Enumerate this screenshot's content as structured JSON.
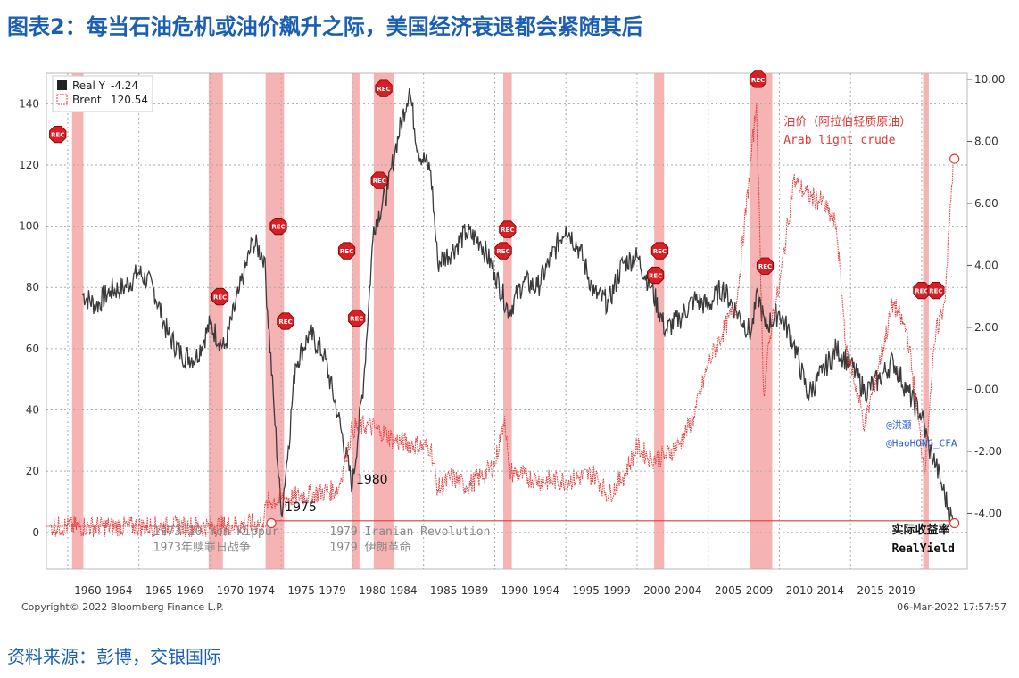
{
  "header": {
    "title": "图表2：每当石油危机或油价飙升之际，美国经济衰退都会紧随其后"
  },
  "footer": {
    "source": "资料来源：彭博，交银国际"
  },
  "chart_meta": {
    "copyright": "Copyright© 2022 Bloomberg Finance L.P.",
    "timestamp": "06-Mar-2022 17:57:57",
    "recession_label": "REC",
    "colors": {
      "real_yield": "#3a3a3a",
      "brent": "#e03a3a",
      "recession": "#f4a0a0",
      "rec_badge": "#d81f26",
      "title": "#1a5fb4",
      "annotation_red": "#e03a3a"
    }
  },
  "chart_data": {
    "type": "line",
    "x_domain": [
      1958.5,
      2023.2
    ],
    "xlim": [
      1958.5,
      2023.2
    ],
    "y_left_lim": [
      -12,
      150
    ],
    "y_right_lim": [
      -5.8,
      10.2
    ],
    "left_ticks": [
      0,
      20,
      40,
      60,
      80,
      100,
      120,
      140
    ],
    "right_ticks": [
      "-4.00",
      "-2.00",
      "0.00",
      "2.00",
      "4.00",
      "6.00",
      "8.00",
      "10.00"
    ],
    "x_categories": [
      "1960-1964",
      "1965-1969",
      "1970-1974",
      "1975-1979",
      "1980-1984",
      "1985-1989",
      "1990-1994",
      "1995-1999",
      "2000-2004",
      "2005-2009",
      "2010-2014",
      "2015-2019"
    ],
    "grid": true,
    "legend": [
      {
        "name": "Real Y",
        "value": "-4.24"
      },
      {
        "name": "Brent",
        "value": "120.54"
      }
    ],
    "recessions": [
      [
        1960.3,
        1961.1
      ],
      [
        1969.9,
        1970.9
      ],
      [
        1973.9,
        1975.2
      ],
      [
        1980.0,
        1980.5
      ],
      [
        1981.5,
        1982.9
      ],
      [
        1990.6,
        1991.2
      ],
      [
        2001.2,
        2001.9
      ],
      [
        2007.9,
        2009.5
      ],
      [
        2020.1,
        2020.5
      ]
    ],
    "series": [
      {
        "name": "Real Y",
        "axis": "left",
        "points": [
          [
            1961,
            78
          ],
          [
            1962,
            74
          ],
          [
            1963,
            79
          ],
          [
            1964,
            80
          ],
          [
            1965,
            85
          ],
          [
            1966,
            80
          ],
          [
            1967,
            65
          ],
          [
            1968,
            58
          ],
          [
            1969,
            57
          ],
          [
            1970,
            68
          ],
          [
            1971,
            60
          ],
          [
            1972,
            78
          ],
          [
            1973,
            95
          ],
          [
            1973.8,
            90
          ],
          [
            1974.5,
            40
          ],
          [
            1975,
            6
          ],
          [
            1975.5,
            28
          ],
          [
            1976,
            55
          ],
          [
            1977,
            65
          ],
          [
            1978,
            58
          ],
          [
            1979,
            38
          ],
          [
            1980,
            15
          ],
          [
            1980.8,
            50
          ],
          [
            1981.5,
            100
          ],
          [
            1982.5,
            112
          ],
          [
            1983,
            125
          ],
          [
            1984,
            145
          ],
          [
            1984.6,
            125
          ],
          [
            1985.5,
            118
          ],
          [
            1986,
            88
          ],
          [
            1987,
            92
          ],
          [
            1988,
            98
          ],
          [
            1989,
            95
          ],
          [
            1990,
            85
          ],
          [
            1991,
            72
          ],
          [
            1992,
            82
          ],
          [
            1993,
            80
          ],
          [
            1994,
            90
          ],
          [
            1995,
            100
          ],
          [
            1996,
            92
          ],
          [
            1997,
            78
          ],
          [
            1998,
            75
          ],
          [
            1999,
            88
          ],
          [
            2000,
            90
          ],
          [
            2001,
            80
          ],
          [
            2002,
            66
          ],
          [
            2003,
            70
          ],
          [
            2004,
            76
          ],
          [
            2005,
            74
          ],
          [
            2006,
            80
          ],
          [
            2007,
            72
          ],
          [
            2008,
            65
          ],
          [
            2008.5,
            78
          ],
          [
            2009,
            67
          ],
          [
            2010,
            72
          ],
          [
            2011,
            62
          ],
          [
            2012,
            45
          ],
          [
            2013,
            52
          ],
          [
            2014,
            60
          ],
          [
            2015,
            55
          ],
          [
            2016,
            46
          ],
          [
            2017,
            50
          ],
          [
            2018,
            56
          ],
          [
            2019,
            46
          ],
          [
            2020,
            38
          ],
          [
            2020.5,
            28
          ],
          [
            2021,
            22
          ],
          [
            2021.5,
            14
          ],
          [
            2022.2,
            3
          ]
        ]
      },
      {
        "name": "Brent",
        "axis": "left",
        "points": [
          [
            1958.8,
            2
          ],
          [
            1970,
            2
          ],
          [
            1973.7,
            3
          ],
          [
            1974,
            10
          ],
          [
            1979,
            14
          ],
          [
            1980,
            34
          ],
          [
            1981,
            35
          ],
          [
            1982,
            33
          ],
          [
            1983,
            30
          ],
          [
            1985,
            28
          ],
          [
            1985.5,
            28
          ],
          [
            1986,
            14
          ],
          [
            1987,
            18
          ],
          [
            1988,
            15
          ],
          [
            1989,
            18
          ],
          [
            1990,
            22
          ],
          [
            1990.7,
            38
          ],
          [
            1991,
            20
          ],
          [
            1993,
            17
          ],
          [
            1995,
            17
          ],
          [
            1997,
            19
          ],
          [
            1998,
            12
          ],
          [
            1999,
            18
          ],
          [
            2000,
            28
          ],
          [
            2001,
            24
          ],
          [
            2002,
            25
          ],
          [
            2003,
            29
          ],
          [
            2004,
            38
          ],
          [
            2005,
            55
          ],
          [
            2006,
            65
          ],
          [
            2007,
            75
          ],
          [
            2008.4,
            140
          ],
          [
            2008.9,
            45
          ],
          [
            2009.5,
            70
          ],
          [
            2010,
            80
          ],
          [
            2011,
            115
          ],
          [
            2012,
            110
          ],
          [
            2013,
            108
          ],
          [
            2014,
            100
          ],
          [
            2014.8,
            55
          ],
          [
            2015,
            55
          ],
          [
            2016,
            35
          ],
          [
            2017,
            55
          ],
          [
            2018,
            75
          ],
          [
            2019,
            65
          ],
          [
            2020.2,
            20
          ],
          [
            2020.6,
            45
          ],
          [
            2021,
            65
          ],
          [
            2021.6,
            75
          ],
          [
            2022.2,
            120
          ]
        ]
      }
    ],
    "point_labels": [
      {
        "text": "1975",
        "x": 1975,
        "y": 7
      },
      {
        "text": "1980",
        "x": 1980,
        "y": 16
      }
    ],
    "annotations": [
      {
        "text": "1973-10 Yom Kippur",
        "x": 1966,
        "y": -1
      },
      {
        "text": "1973年赎罪日战争",
        "x": 1966,
        "y": -6
      },
      {
        "text": "1979 Iranian Revolution",
        "x": 1978.4,
        "y": -1
      },
      {
        "text": "1979 伊朗革命",
        "x": 1978.4,
        "y": -6
      },
      {
        "text": "油价（阿拉伯轻质原油）",
        "x": 2010.3,
        "y": 133
      },
      {
        "text": "Arab light crude",
        "x": 2010.3,
        "y": 127
      },
      {
        "text": "@洪灏",
        "x": 2017.5,
        "y": 34
      },
      {
        "text": "@HaoHONG_CFA",
        "x": 2017.5,
        "y": 28
      },
      {
        "text": "实际收益率",
        "x": 2017.9,
        "y": -0.4
      },
      {
        "text": "RealYield",
        "x": 2017.9,
        "y": -6.5
      }
    ],
    "rec_badges": [
      [
        1959.3,
        130
      ],
      [
        1970.7,
        77
      ],
      [
        1974.8,
        100
      ],
      [
        1975.3,
        69
      ],
      [
        1979.6,
        92
      ],
      [
        1980.3,
        70
      ],
      [
        1982.2,
        145
      ],
      [
        1981.9,
        115
      ],
      [
        1990.9,
        99
      ],
      [
        1990.6,
        92
      ],
      [
        2001.6,
        92
      ],
      [
        2001.3,
        84
      ],
      [
        2008.5,
        148
      ],
      [
        2009.0,
        87
      ],
      [
        2020.0,
        79
      ],
      [
        2021.0,
        79
      ]
    ]
  }
}
